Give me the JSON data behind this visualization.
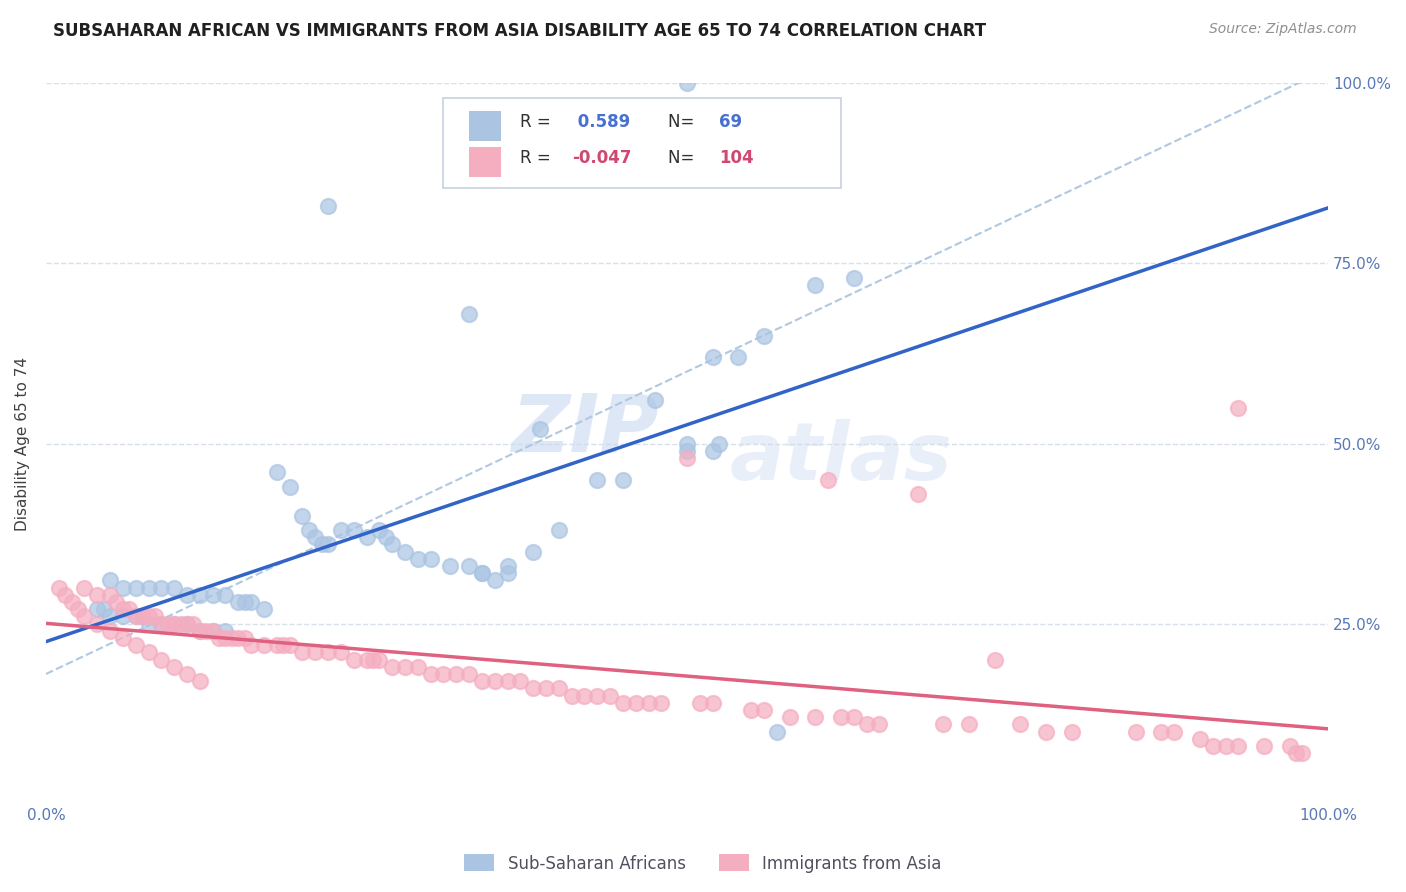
{
  "title": "SUBSAHARAN AFRICAN VS IMMIGRANTS FROM ASIA DISABILITY AGE 65 TO 74 CORRELATION CHART",
  "source": "Source: ZipAtlas.com",
  "ylabel": "Disability Age 65 to 74",
  "xlim": [
    0,
    1.0
  ],
  "ylim": [
    0,
    1.0
  ],
  "blue_r": 0.589,
  "blue_n": 69,
  "pink_r": -0.047,
  "pink_n": 104,
  "blue_color": "#aac4e2",
  "pink_color": "#f5adc0",
  "blue_line_color": "#3264c8",
  "pink_line_color": "#e06080",
  "dashed_line_color": "#b0c8e0",
  "watermark_zip": "ZIP",
  "watermark_atlas": "atlas",
  "blue_scatter_x": [
    0.5,
    0.22,
    0.33,
    0.385,
    0.52,
    0.475,
    0.5,
    0.52,
    0.54,
    0.525,
    0.18,
    0.19,
    0.2,
    0.205,
    0.21,
    0.215,
    0.22,
    0.23,
    0.24,
    0.25,
    0.26,
    0.265,
    0.27,
    0.28,
    0.29,
    0.3,
    0.315,
    0.33,
    0.34,
    0.36,
    0.05,
    0.06,
    0.07,
    0.08,
    0.09,
    0.1,
    0.11,
    0.12,
    0.13,
    0.14,
    0.15,
    0.155,
    0.16,
    0.17,
    0.38,
    0.4,
    0.43,
    0.45,
    0.63,
    0.04,
    0.045,
    0.05,
    0.06,
    0.07,
    0.075,
    0.08,
    0.09,
    0.1,
    0.11,
    0.12,
    0.13,
    0.14,
    0.34,
    0.35,
    0.36,
    0.5,
    0.56,
    0.57,
    0.6
  ],
  "blue_scatter_y": [
    1.0,
    0.83,
    0.68,
    0.52,
    0.62,
    0.56,
    0.49,
    0.49,
    0.62,
    0.5,
    0.46,
    0.44,
    0.4,
    0.38,
    0.37,
    0.36,
    0.36,
    0.38,
    0.38,
    0.37,
    0.38,
    0.37,
    0.36,
    0.35,
    0.34,
    0.34,
    0.33,
    0.33,
    0.32,
    0.32,
    0.31,
    0.3,
    0.3,
    0.3,
    0.3,
    0.3,
    0.29,
    0.29,
    0.29,
    0.29,
    0.28,
    0.28,
    0.28,
    0.27,
    0.35,
    0.38,
    0.45,
    0.45,
    0.73,
    0.27,
    0.27,
    0.26,
    0.26,
    0.26,
    0.26,
    0.25,
    0.25,
    0.25,
    0.25,
    0.24,
    0.24,
    0.24,
    0.32,
    0.31,
    0.33,
    0.5,
    0.65,
    0.1,
    0.72
  ],
  "pink_scatter_x": [
    0.03,
    0.04,
    0.05,
    0.055,
    0.06,
    0.065,
    0.07,
    0.075,
    0.08,
    0.085,
    0.09,
    0.095,
    0.1,
    0.105,
    0.11,
    0.115,
    0.12,
    0.125,
    0.13,
    0.135,
    0.14,
    0.145,
    0.15,
    0.155,
    0.16,
    0.17,
    0.18,
    0.185,
    0.19,
    0.2,
    0.21,
    0.22,
    0.23,
    0.24,
    0.25,
    0.255,
    0.26,
    0.27,
    0.28,
    0.29,
    0.3,
    0.31,
    0.32,
    0.33,
    0.34,
    0.35,
    0.36,
    0.37,
    0.38,
    0.39,
    0.4,
    0.41,
    0.42,
    0.43,
    0.44,
    0.45,
    0.46,
    0.47,
    0.48,
    0.5,
    0.51,
    0.52,
    0.55,
    0.56,
    0.58,
    0.6,
    0.61,
    0.62,
    0.63,
    0.64,
    0.65,
    0.68,
    0.7,
    0.72,
    0.74,
    0.76,
    0.78,
    0.8,
    0.85,
    0.87,
    0.88,
    0.9,
    0.91,
    0.92,
    0.93,
    0.95,
    0.97,
    0.975,
    0.98,
    0.01,
    0.015,
    0.02,
    0.025,
    0.03,
    0.04,
    0.05,
    0.06,
    0.07,
    0.08,
    0.09,
    0.1,
    0.11,
    0.12,
    0.93
  ],
  "pink_scatter_y": [
    0.3,
    0.29,
    0.29,
    0.28,
    0.27,
    0.27,
    0.26,
    0.26,
    0.26,
    0.26,
    0.25,
    0.25,
    0.25,
    0.25,
    0.25,
    0.25,
    0.24,
    0.24,
    0.24,
    0.23,
    0.23,
    0.23,
    0.23,
    0.23,
    0.22,
    0.22,
    0.22,
    0.22,
    0.22,
    0.21,
    0.21,
    0.21,
    0.21,
    0.2,
    0.2,
    0.2,
    0.2,
    0.19,
    0.19,
    0.19,
    0.18,
    0.18,
    0.18,
    0.18,
    0.17,
    0.17,
    0.17,
    0.17,
    0.16,
    0.16,
    0.16,
    0.15,
    0.15,
    0.15,
    0.15,
    0.14,
    0.14,
    0.14,
    0.14,
    0.48,
    0.14,
    0.14,
    0.13,
    0.13,
    0.12,
    0.12,
    0.45,
    0.12,
    0.12,
    0.11,
    0.11,
    0.43,
    0.11,
    0.11,
    0.2,
    0.11,
    0.1,
    0.1,
    0.1,
    0.1,
    0.1,
    0.09,
    0.08,
    0.08,
    0.08,
    0.08,
    0.08,
    0.07,
    0.07,
    0.3,
    0.29,
    0.28,
    0.27,
    0.26,
    0.25,
    0.24,
    0.23,
    0.22,
    0.21,
    0.2,
    0.19,
    0.18,
    0.17,
    0.55
  ],
  "ytick_positions": [
    0.25,
    0.5,
    0.75,
    1.0
  ],
  "ytick_labels": [
    "25.0%",
    "50.0%",
    "75.0%",
    "100.0%"
  ],
  "xtick_positions": [
    0.0,
    0.25,
    0.5,
    0.75,
    1.0
  ],
  "xtick_labels": [
    "0.0%",
    "",
    "",
    "",
    "100.0%"
  ],
  "grid_color": "#d8e0ec",
  "grid_style": "--",
  "tick_color": "#5878b8",
  "title_fontsize": 12,
  "axis_label_fontsize": 11,
  "tick_fontsize": 11
}
